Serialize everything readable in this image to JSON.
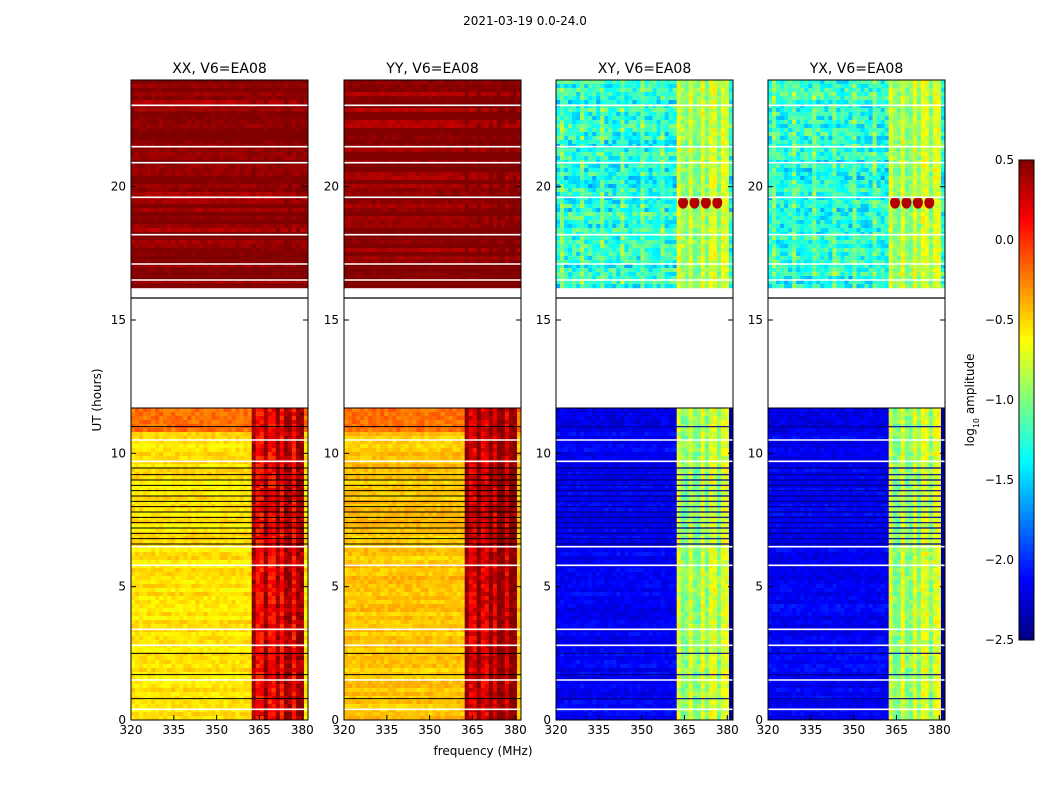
{
  "figure": {
    "suptitle": "2021-03-19 0.0-24.0",
    "xlabel": "frequency (MHz)",
    "ylabel": "UT (hours)"
  },
  "chart_data": {
    "type": "heatmap",
    "title": "2021-03-19 0.0-24.0",
    "xlabel": "frequency (MHz)",
    "ylabel": "UT (hours)",
    "xlim": [
      320,
      382
    ],
    "ylim": [
      0,
      24
    ],
    "xticks": [
      "320",
      "335",
      "350",
      "365",
      "380"
    ],
    "xtick_values": [
      320,
      335,
      350,
      365,
      380
    ],
    "yticks_lower": [
      "0",
      "5",
      "10",
      "15"
    ],
    "ytick_values_lower": [
      0,
      5,
      10,
      15
    ],
    "yticks_upper": [
      "20"
    ],
    "ytick_values_upper": [
      20
    ],
    "gap_hours": [
      11.7,
      16.0
    ],
    "colormap": "jet",
    "colorbar": {
      "label_prefix": "log",
      "label_sub": "10",
      "label_suffix": " amplitude",
      "range": [
        -2.5,
        0.5
      ],
      "ticks": [
        "0.5",
        "0.0",
        "−0.5",
        "−1.0",
        "−1.5",
        "−2.0",
        "−2.5"
      ],
      "tick_values": [
        0.5,
        0.0,
        -0.5,
        -1.0,
        -1.5,
        -2.0,
        -2.5
      ]
    },
    "panels": [
      {
        "name": "XX",
        "title": "XX, V6=EA08",
        "base_level": -0.55,
        "upper_level": 0.45,
        "rfi_level": 0.1,
        "evening_level": -0.2
      },
      {
        "name": "YY",
        "title": "YY, V6=EA08",
        "base_level": -0.45,
        "upper_level": 0.45,
        "rfi_level": 0.2,
        "evening_level": -0.2
      },
      {
        "name": "XY",
        "title": "XY, V6=EA08",
        "base_level": -2.15,
        "upper_level": -1.3,
        "rfi_level": -1.0,
        "evening_level": -2.2
      },
      {
        "name": "YX",
        "title": "YX, V6=EA08",
        "base_level": -2.15,
        "upper_level": -1.3,
        "rfi_level": -1.0,
        "evening_level": -2.2
      }
    ],
    "rfi_channels_mhz": [
      363,
      367,
      371,
      375,
      379
    ],
    "xy_bright_blobs": {
      "hour": 19.4,
      "freqs_mhz": [
        364.5,
        368.5,
        372.5,
        376.5
      ],
      "level": 0.35
    }
  }
}
